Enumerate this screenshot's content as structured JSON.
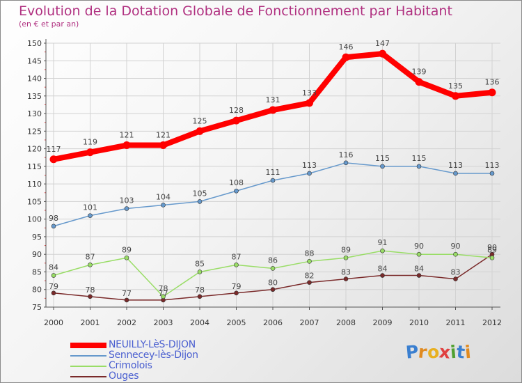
{
  "title": "Evolution de la Dotation Globale de Fonctionnement par Habitant",
  "subtitle": "(en € et par an)",
  "chart_data": {
    "type": "line",
    "title": "Evolution de la Dotation Globale de Fonctionnement par Habitant",
    "subtitle": "(en € et par an)",
    "x": [
      "2000",
      "2001",
      "2002",
      "2003",
      "2004",
      "2005",
      "2006",
      "2007",
      "2008",
      "2009",
      "2010",
      "2011",
      "2012"
    ],
    "ylim": [
      75,
      150
    ],
    "yticks": [
      75,
      80,
      85,
      90,
      95,
      100,
      105,
      110,
      115,
      120,
      125,
      130,
      135,
      140,
      145,
      150
    ],
    "grid": true,
    "legend_position": "bottom-left",
    "series": [
      {
        "name": "NEUILLY-LèS-DIJON",
        "color": "#ff0000",
        "values": [
          117,
          119,
          121,
          121,
          125,
          128,
          131,
          133,
          146,
          147,
          139,
          135,
          136
        ]
      },
      {
        "name": "Sennecey-lès-Dijon",
        "color": "#6699cc",
        "values": [
          98,
          101,
          103,
          104,
          105,
          108,
          111,
          113,
          116,
          115,
          115,
          113,
          113
        ]
      },
      {
        "name": "Crimolois",
        "color": "#99dd66",
        "values": [
          84,
          87,
          89,
          78,
          85,
          87,
          86,
          88,
          89,
          91,
          90,
          90,
          89
        ]
      },
      {
        "name": "Ouges",
        "color": "#7a2a2a",
        "values": [
          79,
          78,
          77,
          77,
          78,
          79,
          80,
          82,
          83,
          84,
          84,
          83,
          90
        ]
      }
    ]
  },
  "logo": {
    "letters": [
      "P",
      "r",
      "o",
      "x",
      "i",
      "t",
      "i"
    ],
    "colors": [
      "#3a7fd0",
      "#e08a20",
      "#e8b020",
      "#e04040",
      "#50a030",
      "#3a7fd0",
      "#e08a20"
    ]
  }
}
